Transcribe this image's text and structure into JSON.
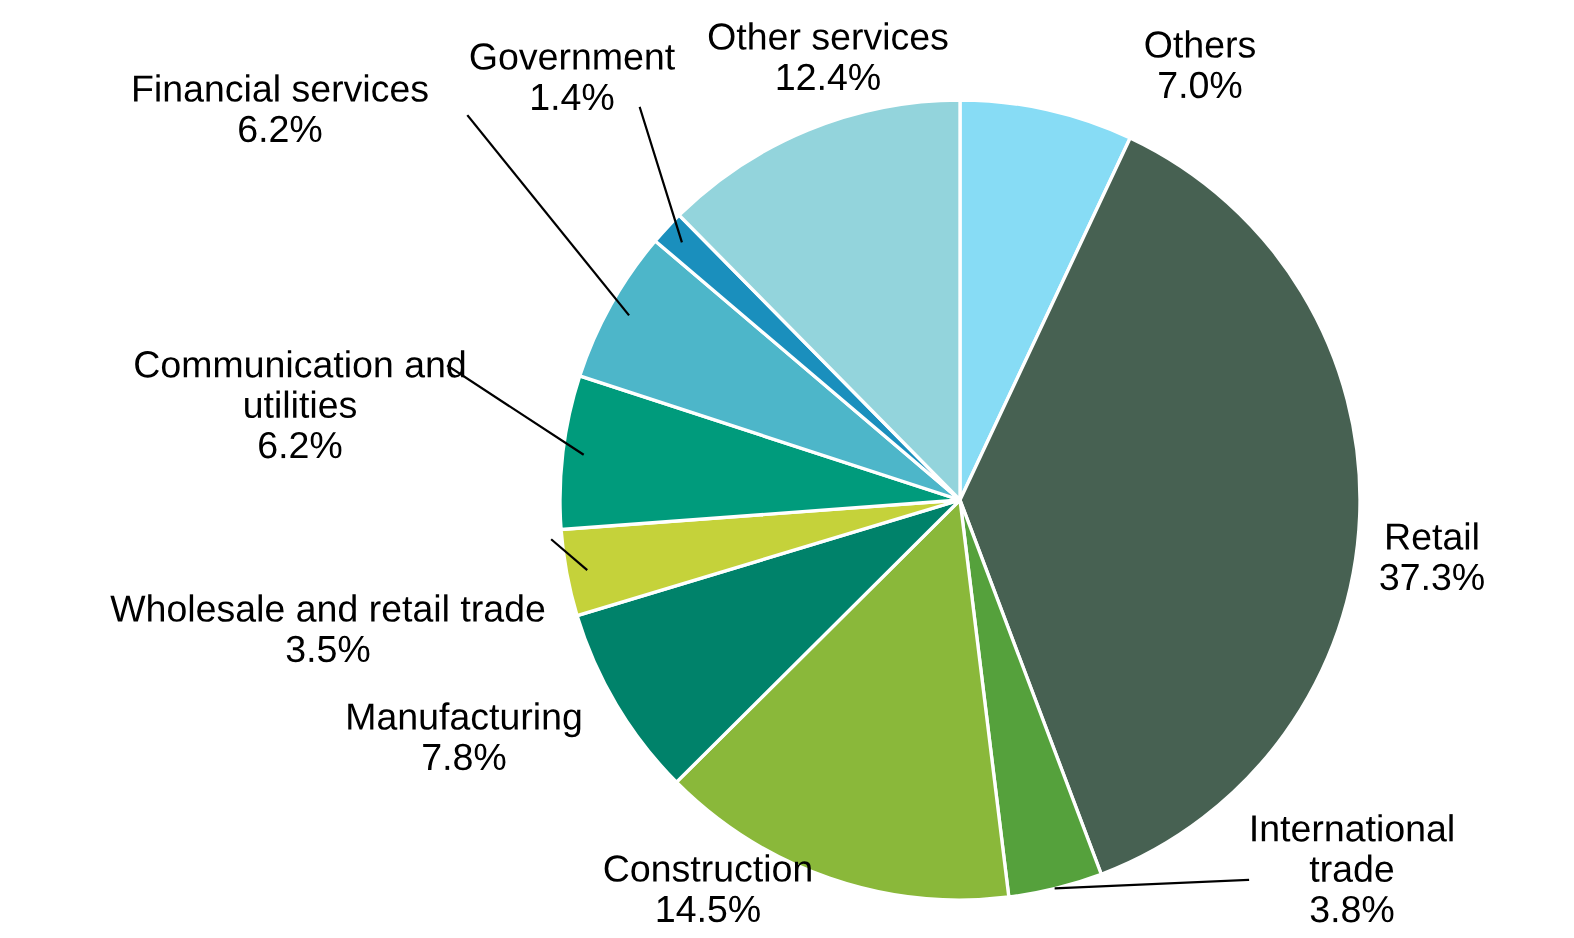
{
  "chart_data": {
    "type": "pie",
    "categories": [
      "Others",
      "Retail",
      "International trade",
      "Construction",
      "Manufacturing",
      "Wholesale and retail trade",
      "Communication and utilities",
      "Financial services",
      "Government",
      "Other services"
    ],
    "values": [
      7.0,
      37.3,
      3.8,
      14.5,
      7.8,
      3.5,
      6.2,
      6.2,
      1.4,
      12.4
    ],
    "value_labels": [
      "7.0%",
      "37.3%",
      "3.8%",
      "14.5%",
      "7.8%",
      "3.5%",
      "6.2%",
      "6.2%",
      "1.4%",
      "12.4%"
    ],
    "colors": [
      "#87dcf5",
      "#476152",
      "#55a13c",
      "#8ab83a",
      "#00826a",
      "#c5d23a",
      "#009b7c",
      "#4db6c9",
      "#1a8fbd",
      "#93d4dc"
    ],
    "legend": false
  }
}
